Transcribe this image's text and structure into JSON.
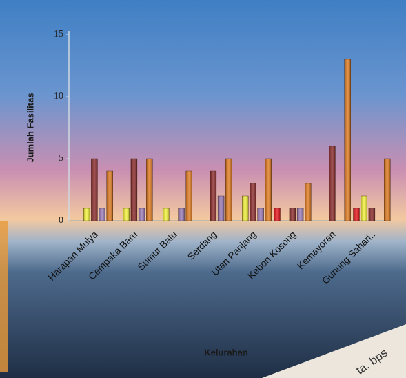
{
  "chart_data": {
    "type": "bar",
    "y_label": "Jumlah Fasilitas",
    "x_label": "Kelurahan",
    "categories": [
      "Harapan Mulya",
      "Cempaka Baru",
      "Sumur Batu",
      "Serdang",
      "Utan Panjang",
      "Kebon Kosong",
      "Kemayoran",
      "Gunung Sahari.."
    ],
    "series": [
      {
        "color": "#e8141c",
        "values": [
          0,
          0,
          0,
          0,
          0,
          1,
          0,
          1
        ]
      },
      {
        "color": "#f2f23a",
        "values": [
          1,
          1,
          1,
          0,
          2,
          0,
          0,
          2
        ]
      },
      {
        "color": "#8b2a2a",
        "values": [
          5,
          5,
          0,
          4,
          3,
          1,
          6,
          1
        ]
      },
      {
        "color": "#9a7ab8",
        "values": [
          1,
          1,
          1,
          2,
          1,
          1,
          0,
          0
        ]
      },
      {
        "color": "#e07a1e",
        "values": [
          4,
          5,
          4,
          5,
          5,
          3,
          13,
          5
        ]
      }
    ],
    "ylim": [
      0,
      15
    ],
    "yticks": [
      0,
      5,
      10,
      15
    ],
    "watermark": "ta. bps"
  }
}
